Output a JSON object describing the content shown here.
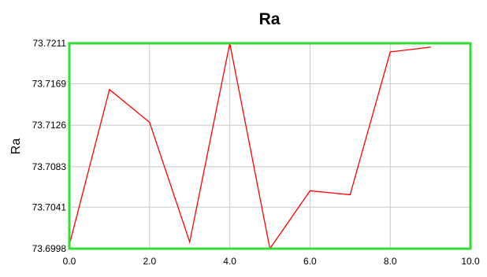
{
  "chart_data": {
    "type": "line",
    "title": "Ra",
    "xlabel": "",
    "ylabel": "Ra",
    "x": [
      0,
      1,
      2,
      3,
      4,
      5,
      6,
      7,
      8,
      9
    ],
    "series": [
      {
        "values": [
          73.7002,
          73.7163,
          73.7129,
          73.7005,
          73.7211,
          73.6998,
          73.7058,
          73.7054,
          73.7202,
          73.7207
        ]
      }
    ],
    "xlim": [
      0,
      10
    ],
    "ylim": [
      73.6998,
      73.7211
    ],
    "x_ticks": [
      0,
      2,
      4,
      6,
      8,
      10
    ],
    "x_tick_labels": [
      "0.0",
      "2.0",
      "4.0",
      "6.0",
      "8.0",
      "10.0"
    ],
    "y_ticks": [
      73.6998,
      73.7041,
      73.7083,
      73.7126,
      73.7169,
      73.7211
    ],
    "y_tick_labels": [
      "73.6998",
      "73.7041",
      "73.7083",
      "73.7126",
      "73.7169",
      "73.7211"
    ],
    "grid": true,
    "legend": "none",
    "colors": {
      "line": "#ff0000",
      "frame": "#33dd33",
      "grid": "#c8c8c8"
    }
  }
}
